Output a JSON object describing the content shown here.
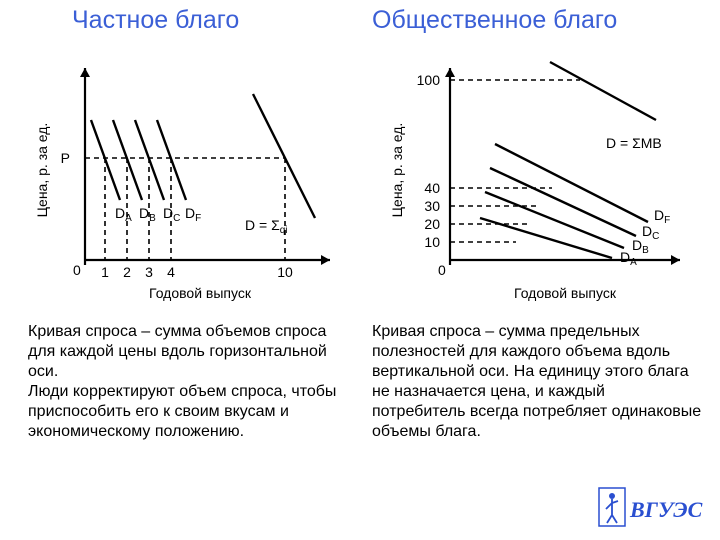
{
  "titles": {
    "left": "Частное благо",
    "right": "Общественное благо"
  },
  "descriptions": {
    "left": "Кривая спроса – сумма объемов спроса для каждой цены вдоль горизонтальной оси.\nЛюди корректируют объем спроса, чтобы приспособить его к своим вкусам и экономическому положению.",
    "right": "Кривая спроса – сумма  предельных полезностей для каждого объема вдоль вертикальной оси. На единицу этого блага не назначается цена, и каждый потребитель всегда потребляет одинаковые объемы блага."
  },
  "style": {
    "title_color": "#3b5fd6",
    "stroke_color": "#000000",
    "line_width_axis": 2.2,
    "line_width_curve": 2.4,
    "dash_pattern": "5,4",
    "background": "#ffffff"
  },
  "chart_left": {
    "type": "line",
    "axis_x_label": "Годовой выпуск",
    "axis_y_label": "Цена, р. за ед.",
    "origin_label": "0",
    "price_label": "P",
    "x_ticks": [
      "1",
      "2",
      "3",
      "4",
      "10"
    ],
    "curve_labels": [
      "D_A",
      "D_B",
      "D_C",
      "D_F"
    ],
    "sum_label": "D = Σ_qi"
  },
  "chart_right": {
    "type": "line",
    "axis_x_label": "Годовой выпуск",
    "axis_y_label": "Цена, р. за ед.",
    "origin_label": "0",
    "y_ticks": [
      "10",
      "20",
      "30",
      "40",
      "100"
    ],
    "curve_labels": [
      "D_A",
      "D_B",
      "D_C",
      "D_F"
    ],
    "sum_label": "D = ΣMB"
  },
  "logo_text": "ВГУЭС"
}
